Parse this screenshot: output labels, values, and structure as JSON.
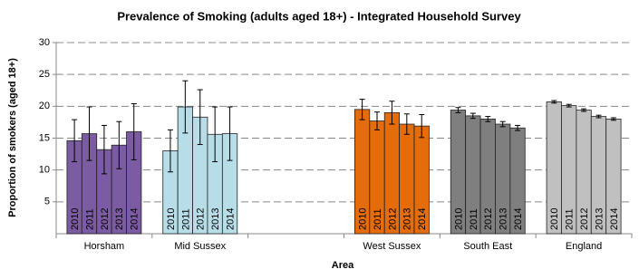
{
  "chart_data": {
    "type": "bar",
    "title": "Prevalence of Smoking (adults aged 18+) - Integrated Household Survey",
    "x_label": "Area",
    "y_label": "Proportion of smokers (aged 18+)",
    "categories": [
      "Horsham",
      "Mid Sussex",
      null,
      "West Sussex",
      "South East",
      "England"
    ],
    "category_colors": [
      "#7b5ba1",
      "#b7dee8",
      null,
      "#e46c0a",
      "#7f7f7f",
      "#c0c0c0"
    ],
    "series": [
      {
        "name": "2010",
        "values": [
          14.6,
          13.0,
          null,
          19.5,
          19.4,
          20.7
        ],
        "errors": [
          3.3,
          3.3,
          null,
          1.6,
          0.4,
          0.2
        ]
      },
      {
        "name": "2011",
        "values": [
          15.7,
          19.9,
          null,
          17.7,
          18.5,
          20.1
        ],
        "errors": [
          4.2,
          4.1,
          null,
          1.4,
          0.4,
          0.2
        ]
      },
      {
        "name": "2012",
        "values": [
          13.2,
          18.3,
          null,
          19.0,
          18.0,
          19.4
        ],
        "errors": [
          3.8,
          4.3,
          null,
          1.8,
          0.4,
          0.2
        ]
      },
      {
        "name": "2013",
        "values": [
          13.9,
          15.6,
          null,
          17.2,
          17.2,
          18.4
        ],
        "errors": [
          3.7,
          4.3,
          null,
          1.6,
          0.4,
          0.2
        ]
      },
      {
        "name": "2014",
        "values": [
          16.0,
          15.7,
          null,
          16.9,
          16.6,
          18.0
        ],
        "errors": [
          4.4,
          4.2,
          null,
          1.8,
          0.4,
          0.2
        ]
      }
    ],
    "ylim": [
      0,
      30
    ],
    "yticks": [
      5,
      10,
      15,
      20,
      25,
      30
    ],
    "grid": true
  }
}
